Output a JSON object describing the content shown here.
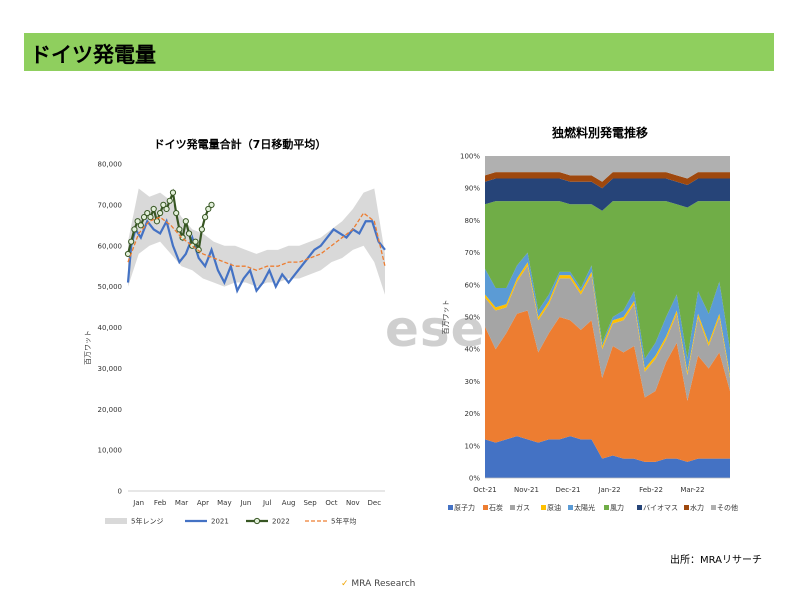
{
  "page": {
    "title": "ドイツ発電量",
    "watermark": "ese",
    "source": "出所：MRAリサーチ",
    "footer": "MRA Research"
  },
  "colors": {
    "banner": "#8fcf5e"
  },
  "chart_data": [
    {
      "type": "line",
      "title": "ドイツ発電量合計（7日移動平均）",
      "ylabel": "百万ワット",
      "xlabel": "",
      "categories": [
        "Jan",
        "Feb",
        "Mar",
        "Apr",
        "May",
        "Jun",
        "Jul",
        "Aug",
        "Sep",
        "Oct",
        "Nov",
        "Dec"
      ],
      "x_ticks": [
        "Jan",
        "Feb",
        "Mar",
        "Apr",
        "May",
        "Jun",
        "Jul",
        "Aug",
        "Sep",
        "Oct",
        "Nov",
        "Dec"
      ],
      "y_ticks": [
        "0",
        "10,000",
        "20,000",
        "30,000",
        "40,000",
        "50,000",
        "60,000",
        "70,000",
        "80,000"
      ],
      "ylim": [
        0,
        80000
      ],
      "xlim": [
        0,
        12
      ],
      "legend_position": "bottom",
      "band": {
        "name": "5年レンジ",
        "color": "#d9d9d9",
        "x": [
          0,
          0.5,
          1,
          1.5,
          2,
          2.5,
          3,
          3.5,
          4,
          4.5,
          5,
          5.5,
          6,
          6.5,
          7,
          7.5,
          8,
          8.5,
          9,
          9.5,
          10,
          10.5,
          11,
          11.5,
          12
        ],
        "low": [
          50000,
          58000,
          60000,
          61000,
          58000,
          55000,
          54000,
          52000,
          51000,
          50000,
          51000,
          51000,
          50000,
          51000,
          51000,
          52000,
          52000,
          53000,
          54000,
          56000,
          57000,
          59000,
          60000,
          56000,
          48000
        ],
        "high": [
          61000,
          74000,
          72000,
          73000,
          71000,
          67000,
          64000,
          63000,
          61000,
          60000,
          60000,
          59000,
          58000,
          59000,
          59000,
          60000,
          60000,
          61000,
          62000,
          64000,
          66000,
          69000,
          73000,
          74000,
          58000
        ]
      },
      "series": [
        {
          "name": "2021",
          "color": "#4472c4",
          "x": [
            0,
            0.15,
            0.35,
            0.6,
            0.9,
            1.2,
            1.5,
            1.8,
            2.1,
            2.4,
            2.7,
            3.0,
            3.3,
            3.6,
            3.9,
            4.2,
            4.5,
            4.8,
            5.1,
            5.4,
            5.7,
            6.0,
            6.3,
            6.6,
            6.9,
            7.2,
            7.5,
            7.8,
            8.1,
            8.4,
            8.7,
            9.0,
            9.3,
            9.6,
            9.9,
            10.2,
            10.5,
            10.8,
            11.1,
            11.4,
            11.7,
            12
          ],
          "values": [
            51000,
            60000,
            64000,
            62000,
            66000,
            64000,
            63000,
            66000,
            60000,
            56000,
            58000,
            62000,
            57000,
            55000,
            59000,
            54000,
            51000,
            55000,
            49000,
            52000,
            54000,
            49000,
            51000,
            54000,
            50000,
            53000,
            51000,
            53000,
            55000,
            57000,
            59000,
            60000,
            62000,
            64000,
            63000,
            62000,
            64000,
            63000,
            66000,
            66000,
            61000,
            59000
          ]
        },
        {
          "name": "2022",
          "color": "#375623",
          "x": [
            0,
            0.15,
            0.3,
            0.45,
            0.6,
            0.75,
            0.9,
            1.05,
            1.2,
            1.35,
            1.5,
            1.65,
            1.8,
            1.95,
            2.1,
            2.25,
            2.4,
            2.55,
            2.7,
            2.85,
            3.0,
            3.15,
            3.3,
            3.45,
            3.6,
            3.75,
            3.9
          ],
          "values": [
            58000,
            61000,
            64000,
            66000,
            65000,
            67000,
            68000,
            67000,
            69000,
            66000,
            68000,
            70000,
            69000,
            71000,
            73000,
            68000,
            64000,
            62000,
            66000,
            63000,
            60000,
            61000,
            59000,
            64000,
            67000,
            69000,
            70000
          ]
        },
        {
          "name": "5年平均",
          "color": "#ed7d31",
          "x": [
            0,
            0.5,
            1,
            1.5,
            2,
            2.5,
            3,
            3.5,
            4,
            4.5,
            5,
            5.5,
            6,
            6.5,
            7,
            7.5,
            8,
            8.5,
            9,
            9.5,
            10,
            10.5,
            11,
            11.5,
            12
          ],
          "values": [
            56000,
            63000,
            66000,
            67000,
            65000,
            62000,
            60000,
            58000,
            57000,
            56000,
            55000,
            55000,
            54000,
            55000,
            55000,
            56000,
            56000,
            57000,
            58000,
            60000,
            62000,
            64000,
            68000,
            66000,
            55000
          ]
        }
      ],
      "legend": [
        "5年レンジ",
        "2021",
        "2022",
        "5年平均"
      ]
    },
    {
      "type": "area",
      "title": "独燃料別発電推移",
      "ylabel": "百万ワット",
      "xlabel": "",
      "stacked": "percent",
      "x_ticks": [
        "Oct-21",
        "Nov-21",
        "Dec-21",
        "Jan-22",
        "Feb-22",
        "Mar-22"
      ],
      "y_ticks": [
        "0%",
        "10%",
        "20%",
        "30%",
        "40%",
        "50%",
        "60%",
        "70%",
        "80%",
        "90%",
        "100%"
      ],
      "ylim": [
        0,
        100
      ],
      "legend_position": "bottom",
      "x": [
        0,
        0.25,
        0.5,
        0.75,
        1,
        1.25,
        1.5,
        1.75,
        2,
        2.25,
        2.5,
        2.75,
        3,
        3.25,
        3.5,
        3.75,
        4,
        4.25,
        4.5,
        4.75,
        5,
        5.25,
        5.5,
        5.75
      ],
      "series": [
        {
          "name": "原子力",
          "color": "#4472c4",
          "values": [
            12,
            11,
            12,
            13,
            12,
            11,
            12,
            12,
            13,
            12,
            12,
            6,
            7,
            6,
            6,
            5,
            5,
            6,
            6,
            5,
            6,
            6,
            6,
            6
          ]
        },
        {
          "name": "石炭",
          "color": "#ed7d31",
          "values": [
            35,
            29,
            33,
            38,
            40,
            28,
            33,
            38,
            36,
            34,
            37,
            25,
            34,
            33,
            35,
            20,
            22,
            30,
            36,
            19,
            32,
            28,
            33,
            21
          ]
        },
        {
          "name": "ガス",
          "color": "#a5a5a5",
          "values": [
            9,
            12,
            8,
            10,
            14,
            10,
            9,
            12,
            13,
            11,
            14,
            9,
            7,
            10,
            13,
            8,
            10,
            7,
            9,
            8,
            12,
            7,
            11,
            4
          ]
        },
        {
          "name": "原油",
          "color": "#ffc000",
          "values": [
            1,
            1,
            1,
            1,
            1,
            1,
            1,
            1,
            1,
            1,
            1,
            1,
            1,
            1,
            1,
            1,
            1,
            1,
            1,
            1,
            1,
            1,
            1,
            1
          ]
        },
        {
          "name": "太陽光",
          "color": "#5b9bd5",
          "values": [
            8,
            6,
            5,
            4,
            3,
            2,
            2,
            1,
            1,
            1,
            2,
            1,
            1,
            2,
            3,
            3,
            4,
            6,
            5,
            4,
            7,
            9,
            10,
            8
          ]
        },
        {
          "name": "風力",
          "color": "#70ad47",
          "values": [
            20,
            27,
            27,
            20,
            16,
            34,
            29,
            22,
            21,
            26,
            19,
            41,
            36,
            34,
            28,
            49,
            44,
            36,
            28,
            47,
            28,
            35,
            25,
            46
          ]
        },
        {
          "name": "バイオマス",
          "color": "#264478",
          "values": [
            7,
            7,
            7,
            7,
            7,
            7,
            7,
            7,
            7,
            7,
            7,
            7,
            7,
            7,
            7,
            7,
            7,
            7,
            7,
            7,
            7,
            7,
            7,
            7
          ]
        },
        {
          "name": "水力",
          "color": "#9e480e",
          "values": [
            2,
            2,
            2,
            2,
            2,
            2,
            2,
            2,
            2,
            2,
            2,
            2,
            2,
            2,
            2,
            2,
            2,
            2,
            2,
            2,
            2,
            2,
            2,
            2
          ]
        },
        {
          "name": "その他",
          "color": "#b0b0b0",
          "values": [
            6,
            5,
            5,
            5,
            5,
            5,
            5,
            5,
            6,
            6,
            6,
            8,
            5,
            5,
            5,
            5,
            5,
            5,
            6,
            7,
            5,
            5,
            5,
            5
          ]
        }
      ],
      "legend": [
        "原子力",
        "石炭",
        "ガス",
        "原油",
        "太陽光",
        "風力",
        "バイオマス",
        "水力",
        "その他"
      ]
    }
  ]
}
